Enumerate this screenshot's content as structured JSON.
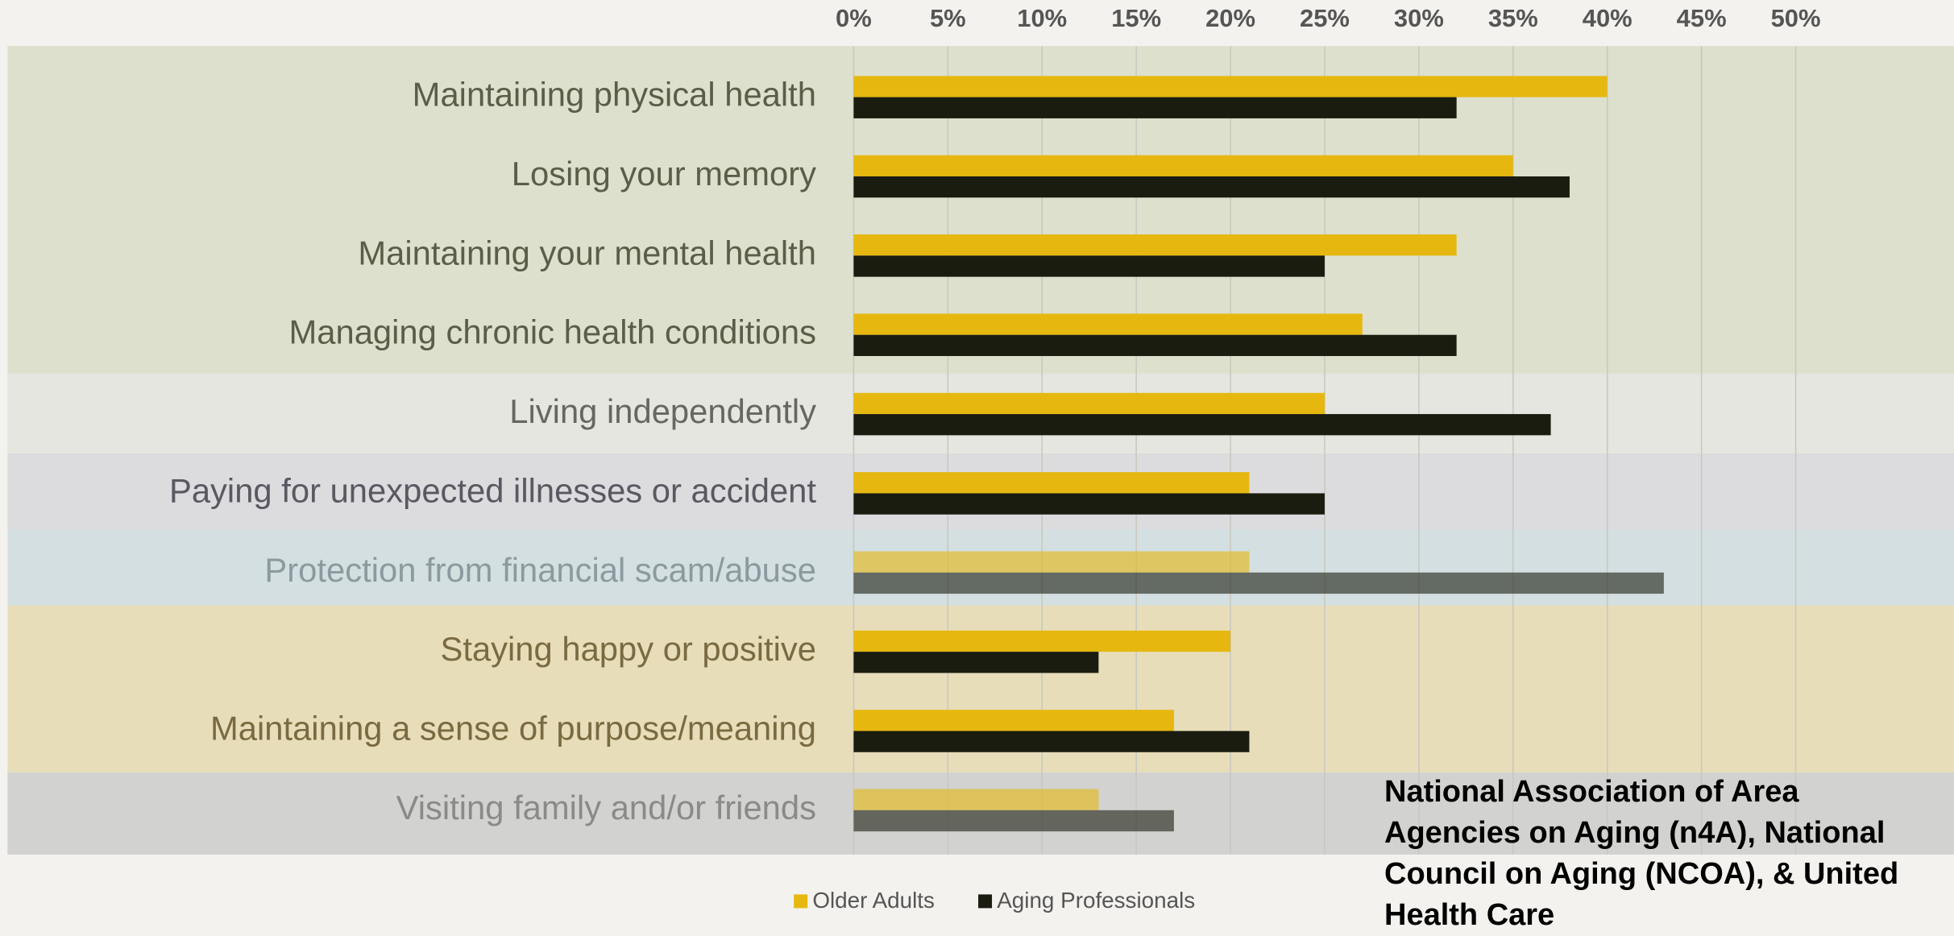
{
  "chart_data": {
    "type": "bar",
    "orientation": "horizontal",
    "categories": [
      "Maintaining physical health",
      "Losing your memory",
      "Maintaining your mental health",
      "Managing chronic health conditions",
      "Living independently",
      "Paying for unexpected illnesses or accident",
      "Protection from financial scam/abuse",
      "Staying happy or positive",
      "Maintaining a sense of purpose/meaning",
      "Visiting family and/or friends"
    ],
    "series": [
      {
        "name": "Older Adults",
        "color": "#e6b80f",
        "values": [
          40,
          35,
          32,
          27,
          25,
          21,
          21,
          20,
          17,
          13
        ]
      },
      {
        "name": "Aging Professionals",
        "color": "#1a1c10",
        "values": [
          32,
          38,
          25,
          32,
          37,
          25,
          43,
          13,
          21,
          17
        ]
      }
    ],
    "xlim": [
      0,
      50
    ],
    "xticks": [
      {
        "value": 0,
        "label": "0%"
      },
      {
        "value": 5,
        "label": "5%"
      },
      {
        "value": 10,
        "label": "10%"
      },
      {
        "value": 15,
        "label": "15%"
      },
      {
        "value": 20,
        "label": "20%"
      },
      {
        "value": 25,
        "label": "25%"
      },
      {
        "value": 30,
        "label": "30%"
      },
      {
        "value": 35,
        "label": "35%"
      },
      {
        "value": 40,
        "label": "40%"
      },
      {
        "value": 45,
        "label": "45%"
      },
      {
        "value": 50,
        "label": "50%"
      }
    ],
    "grid": true,
    "legend": "bottom",
    "source": "National Association of Area Agencies on Aging (n4A), National Council on Aging (NCOA), & United Health Care"
  }
}
